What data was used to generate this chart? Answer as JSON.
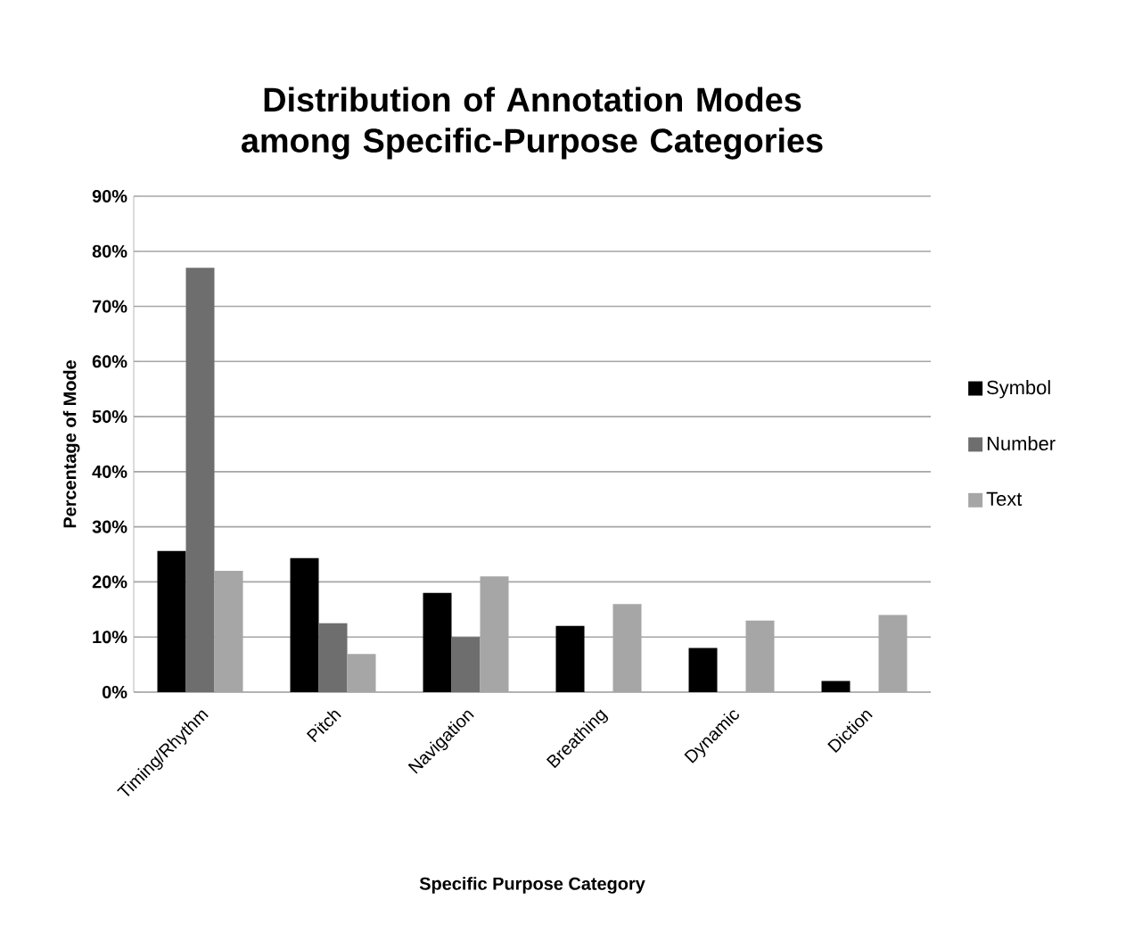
{
  "chart_data": {
    "type": "bar",
    "title": "Distribution of Annotation Modes among Specific-Purpose Categories",
    "xlabel": "Specific Purpose Category",
    "ylabel": "Percentage of  Mode",
    "categories": [
      "Timing/Rhythm",
      "Pitch",
      "Navigation",
      "Breathing",
      "Dynamic",
      "Diction"
    ],
    "series": [
      {
        "name": "Symbol",
        "color": "#000000",
        "values": [
          25.6,
          24.3,
          18,
          12,
          8,
          2
        ]
      },
      {
        "name": "Number",
        "color": "#6e6e6e",
        "values": [
          77,
          12.5,
          10,
          null,
          null,
          null
        ]
      },
      {
        "name": "Text",
        "color": "#a6a6a6",
        "values": [
          22,
          6.9,
          21,
          16,
          13,
          14
        ]
      }
    ],
    "ylim": [
      0,
      90
    ],
    "yticks": [
      {
        "value": 0,
        "label": "0%"
      },
      {
        "value": 10,
        "label": "10%"
      },
      {
        "value": 20,
        "label": "20%"
      },
      {
        "value": 30,
        "label": "30%"
      },
      {
        "value": 40,
        "label": "40%"
      },
      {
        "value": 50,
        "label": "50%"
      },
      {
        "value": 60,
        "label": "60%"
      },
      {
        "value": 70,
        "label": "70%"
      },
      {
        "value": 80,
        "label": "80%"
      },
      {
        "value": 90,
        "label": "90%"
      }
    ],
    "grid": "y",
    "legend": "right"
  }
}
